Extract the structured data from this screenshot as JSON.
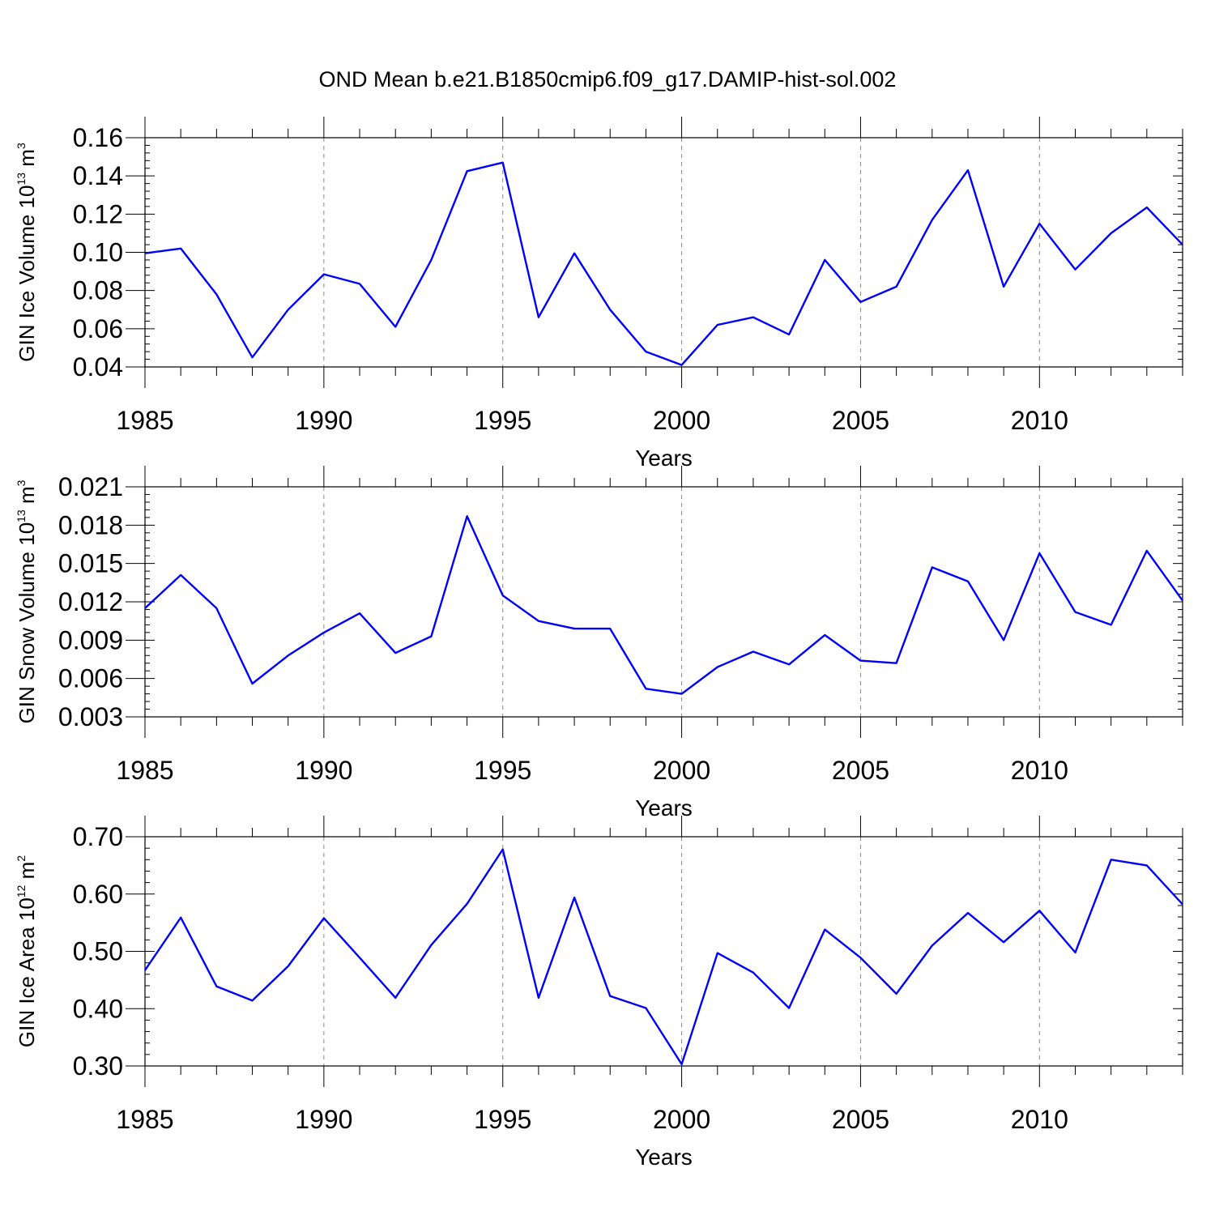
{
  "figure": {
    "title": "OND Mean b.e21.B1850cmip6.f09_g17.DAMIP-hist-sol.002"
  },
  "colors": {
    "series": "#0000ff",
    "axes": "#000000",
    "grid": "#888888"
  },
  "chart_data": [
    {
      "type": "line",
      "ylabel": {
        "text": "GIN Ice Volume 10",
        "exp": "13",
        "unit": "m",
        "unit_exp": "3"
      },
      "xlabel": "Years",
      "xlim": [
        1985,
        2014
      ],
      "ylim": [
        0.04,
        0.16
      ],
      "x_ticks": [
        1985,
        1990,
        1995,
        2000,
        2005,
        2010
      ],
      "x_tick_labels": [
        "1985",
        "1990",
        "1995",
        "2000",
        "2005",
        "2010"
      ],
      "y_ticks": [
        0.04,
        0.06,
        0.08,
        0.1,
        0.12,
        0.14,
        0.16
      ],
      "y_tick_labels": [
        "0.04",
        "0.06",
        "0.08",
        "0.10",
        "0.12",
        "0.14",
        "0.16"
      ],
      "x": [
        1985,
        1986,
        1987,
        1988,
        1989,
        1990,
        1991,
        1992,
        1993,
        1994,
        1995,
        1996,
        1997,
        1998,
        1999,
        2000,
        2001,
        2002,
        2003,
        2004,
        2005,
        2006,
        2007,
        2008,
        2009,
        2010,
        2011,
        2012,
        2013,
        2014
      ],
      "series": [
        {
          "name": "GIN Ice Volume",
          "values": [
            0.0995,
            0.102,
            0.078,
            0.045,
            0.07,
            0.0885,
            0.0835,
            0.061,
            0.096,
            0.1425,
            0.147,
            0.066,
            0.0995,
            0.07,
            0.048,
            0.041,
            0.062,
            0.066,
            0.057,
            0.096,
            0.074,
            0.082,
            0.117,
            0.143,
            0.082,
            0.115,
            0.091,
            0.11,
            0.1235,
            0.104
          ]
        }
      ]
    },
    {
      "type": "line",
      "ylabel": {
        "text": "GIN Snow Volume 10",
        "exp": "13",
        "unit": "m",
        "unit_exp": "3"
      },
      "xlabel": "Years",
      "xlim": [
        1985,
        2014
      ],
      "ylim": [
        0.003,
        0.021
      ],
      "x_ticks": [
        1985,
        1990,
        1995,
        2000,
        2005,
        2010
      ],
      "x_tick_labels": [
        "1985",
        "1990",
        "1995",
        "2000",
        "2005",
        "2010"
      ],
      "y_ticks": [
        0.003,
        0.006,
        0.009,
        0.012,
        0.015,
        0.018,
        0.021
      ],
      "y_tick_labels": [
        "0.003",
        "0.006",
        "0.009",
        "0.012",
        "0.015",
        "0.018",
        "0.021"
      ],
      "x": [
        1985,
        1986,
        1987,
        1988,
        1989,
        1990,
        1991,
        1992,
        1993,
        1994,
        1995,
        1996,
        1997,
        1998,
        1999,
        2000,
        2001,
        2002,
        2003,
        2004,
        2005,
        2006,
        2007,
        2008,
        2009,
        2010,
        2011,
        2012,
        2013,
        2014
      ],
      "series": [
        {
          "name": "GIN Snow Volume",
          "values": [
            0.0115,
            0.0141,
            0.0115,
            0.0056,
            0.0078,
            0.0096,
            0.0111,
            0.008,
            0.0093,
            0.0187,
            0.0125,
            0.0105,
            0.0099,
            0.0099,
            0.0052,
            0.0048,
            0.0069,
            0.0081,
            0.0071,
            0.0094,
            0.0074,
            0.0072,
            0.0147,
            0.0136,
            0.009,
            0.0158,
            0.0112,
            0.0102,
            0.016,
            0.0121
          ]
        }
      ]
    },
    {
      "type": "line",
      "ylabel": {
        "text": "GIN Ice Area 10",
        "exp": "12",
        "unit": "m",
        "unit_exp": "2"
      },
      "xlabel": "Years",
      "xlim": [
        1985,
        2014
      ],
      "ylim": [
        0.3,
        0.7
      ],
      "x_ticks": [
        1985,
        1990,
        1995,
        2000,
        2005,
        2010
      ],
      "x_tick_labels": [
        "1985",
        "1990",
        "1995",
        "2000",
        "2005",
        "2010"
      ],
      "y_ticks": [
        0.3,
        0.4,
        0.5,
        0.6,
        0.7
      ],
      "y_tick_labels": [
        "0.30",
        "0.40",
        "0.50",
        "0.60",
        "0.70"
      ],
      "x": [
        1985,
        1986,
        1987,
        1988,
        1989,
        1990,
        1991,
        1992,
        1993,
        1994,
        1995,
        1996,
        1997,
        1998,
        1999,
        2000,
        2001,
        2002,
        2003,
        2004,
        2005,
        2006,
        2007,
        2008,
        2009,
        2010,
        2011,
        2012,
        2013,
        2014
      ],
      "series": [
        {
          "name": "GIN Ice Area",
          "values": [
            0.467,
            0.559,
            0.439,
            0.414,
            0.474,
            0.558,
            0.489,
            0.419,
            0.511,
            0.583,
            0.678,
            0.419,
            0.594,
            0.422,
            0.401,
            0.303,
            0.497,
            0.463,
            0.401,
            0.538,
            0.489,
            0.426,
            0.51,
            0.567,
            0.516,
            0.571,
            0.498,
            0.66,
            0.65,
            0.582
          ]
        }
      ]
    }
  ]
}
